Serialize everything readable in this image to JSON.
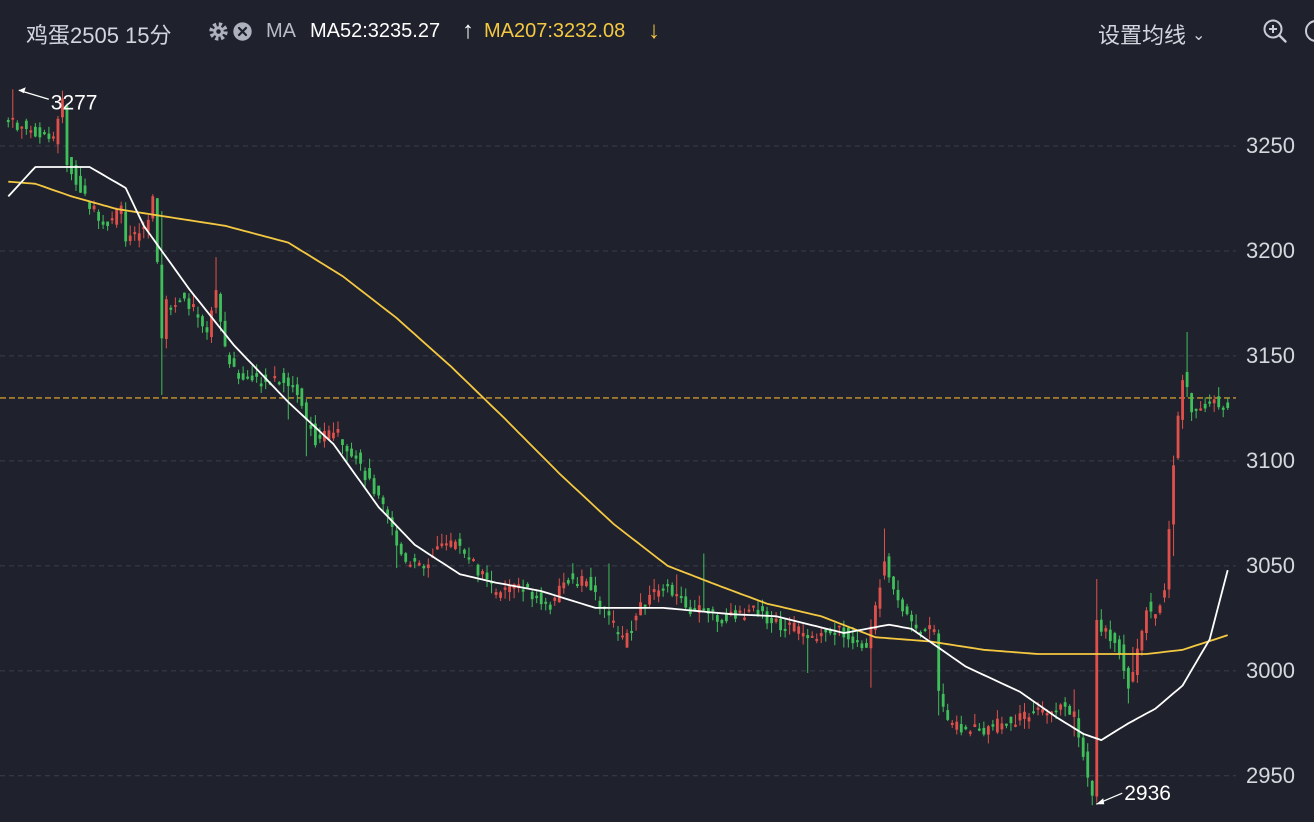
{
  "toolbar": {
    "title": "鸡蛋2505 15分",
    "gear_icon": "gear-icon",
    "close_icon": "close-circle-icon",
    "ma_label": "MA",
    "ma52_text": "MA52:3235.27",
    "ma52_arrow": "↑",
    "ma207_text": "MA207:3232.08",
    "ma207_arrow": "↓",
    "settings_label": "设置均线",
    "settings_chevron": "⌄",
    "zoom_icon": "zoom-in-icon",
    "more_icon": "more-icon"
  },
  "colors": {
    "background": "#1f222c",
    "up": "#e0504a",
    "down": "#3fbf5a",
    "ma52": "#ffffff",
    "ma207": "#f5c842",
    "ref_line": "#c9962e",
    "grid": "#3a3f4c",
    "axis_text": "#d6d8de"
  },
  "chart_data": {
    "type": "candlestick",
    "title": "鸡蛋2505 15分",
    "xlabel": "",
    "ylabel": "",
    "y_range": [
      2928,
      3290
    ],
    "y_ticks": [
      "3250",
      "3200",
      "3150",
      "3100",
      "3050",
      "3000",
      "2950"
    ],
    "grid": "horizontal dashed",
    "reference_line": 3130,
    "annotations": {
      "high_label": "3277",
      "low_label": "2936"
    },
    "candle_key_points": [
      [
        0,
        3262
      ],
      [
        10,
        3253
      ],
      [
        12,
        3270
      ],
      [
        13,
        3242
      ],
      [
        18,
        3222
      ],
      [
        22,
        3212
      ],
      [
        25,
        3221
      ],
      [
        26,
        3205
      ],
      [
        30,
        3210
      ],
      [
        32,
        3225
      ],
      [
        33,
        3192
      ],
      [
        34,
        3160
      ],
      [
        35,
        3175
      ],
      [
        38,
        3178
      ],
      [
        42,
        3170
      ],
      [
        44,
        3160
      ],
      [
        46,
        3182
      ],
      [
        48,
        3152
      ],
      [
        50,
        3142
      ],
      [
        55,
        3138
      ],
      [
        60,
        3140
      ],
      [
        64,
        3133
      ],
      [
        66,
        3120
      ],
      [
        68,
        3110
      ],
      [
        72,
        3115
      ],
      [
        76,
        3105
      ],
      [
        80,
        3090
      ],
      [
        84,
        3072
      ],
      [
        88,
        3052
      ],
      [
        92,
        3048
      ],
      [
        96,
        3062
      ],
      [
        100,
        3060
      ],
      [
        104,
        3048
      ],
      [
        108,
        3036
      ],
      [
        112,
        3040
      ],
      [
        116,
        3037
      ],
      [
        120,
        3032
      ],
      [
        124,
        3044
      ],
      [
        128,
        3042
      ],
      [
        132,
        3028
      ],
      [
        136,
        3014
      ],
      [
        140,
        3030
      ],
      [
        144,
        3040
      ],
      [
        148,
        3038
      ],
      [
        150,
        3028
      ],
      [
        154,
        3030
      ],
      [
        158,
        3025
      ],
      [
        162,
        3027
      ],
      [
        166,
        3028
      ],
      [
        170,
        3023
      ],
      [
        174,
        3020
      ],
      [
        178,
        3017
      ],
      [
        182,
        3020
      ],
      [
        186,
        3018
      ],
      [
        190,
        3010
      ],
      [
        192,
        3030
      ],
      [
        194,
        3055
      ],
      [
        196,
        3040
      ],
      [
        198,
        3030
      ],
      [
        202,
        3018
      ],
      [
        205,
        3020
      ],
      [
        206,
        2990
      ],
      [
        208,
        2975
      ],
      [
        212,
        2972
      ],
      [
        216,
        2972
      ],
      [
        220,
        2975
      ],
      [
        224,
        2977
      ],
      [
        228,
        2980
      ],
      [
        232,
        2983
      ],
      [
        236,
        2980
      ],
      [
        238,
        2960
      ],
      [
        240,
        2940
      ],
      [
        241,
        3025
      ],
      [
        243,
        3018
      ],
      [
        246,
        3010
      ],
      [
        248,
        2994
      ],
      [
        250,
        3008
      ],
      [
        252,
        3030
      ],
      [
        254,
        3025
      ],
      [
        256,
        3040
      ],
      [
        258,
        3100
      ],
      [
        260,
        3140
      ],
      [
        262,
        3125
      ],
      [
        266,
        3128
      ],
      [
        270,
        3128
      ]
    ],
    "candle_count": 271,
    "ma52": [
      [
        0,
        3226
      ],
      [
        6,
        3240
      ],
      [
        18,
        3240
      ],
      [
        26,
        3230
      ],
      [
        30,
        3212
      ],
      [
        40,
        3182
      ],
      [
        50,
        3155
      ],
      [
        62,
        3128
      ],
      [
        72,
        3108
      ],
      [
        82,
        3078
      ],
      [
        90,
        3060
      ],
      [
        100,
        3046
      ],
      [
        108,
        3042
      ],
      [
        118,
        3038
      ],
      [
        130,
        3030
      ],
      [
        145,
        3030
      ],
      [
        160,
        3027
      ],
      [
        170,
        3026
      ],
      [
        185,
        3018
      ],
      [
        195,
        3022
      ],
      [
        200,
        3020
      ],
      [
        212,
        3002
      ],
      [
        224,
        2990
      ],
      [
        232,
        2978
      ],
      [
        238,
        2970
      ],
      [
        242,
        2967
      ],
      [
        248,
        2975
      ],
      [
        254,
        2982
      ],
      [
        260,
        2993
      ],
      [
        266,
        3015
      ],
      [
        270,
        3048
      ]
    ],
    "ma207": [
      [
        0,
        3233
      ],
      [
        6,
        3232
      ],
      [
        14,
        3226
      ],
      [
        24,
        3220
      ],
      [
        36,
        3216
      ],
      [
        48,
        3212
      ],
      [
        62,
        3204
      ],
      [
        74,
        3188
      ],
      [
        86,
        3168
      ],
      [
        98,
        3145
      ],
      [
        110,
        3120
      ],
      [
        122,
        3094
      ],
      [
        134,
        3070
      ],
      [
        146,
        3050
      ],
      [
        158,
        3040
      ],
      [
        168,
        3032
      ],
      [
        180,
        3026
      ],
      [
        192,
        3016
      ],
      [
        204,
        3014
      ],
      [
        216,
        3010
      ],
      [
        228,
        3008
      ],
      [
        240,
        3008
      ],
      [
        252,
        3008
      ],
      [
        260,
        3010
      ],
      [
        270,
        3017
      ]
    ]
  }
}
